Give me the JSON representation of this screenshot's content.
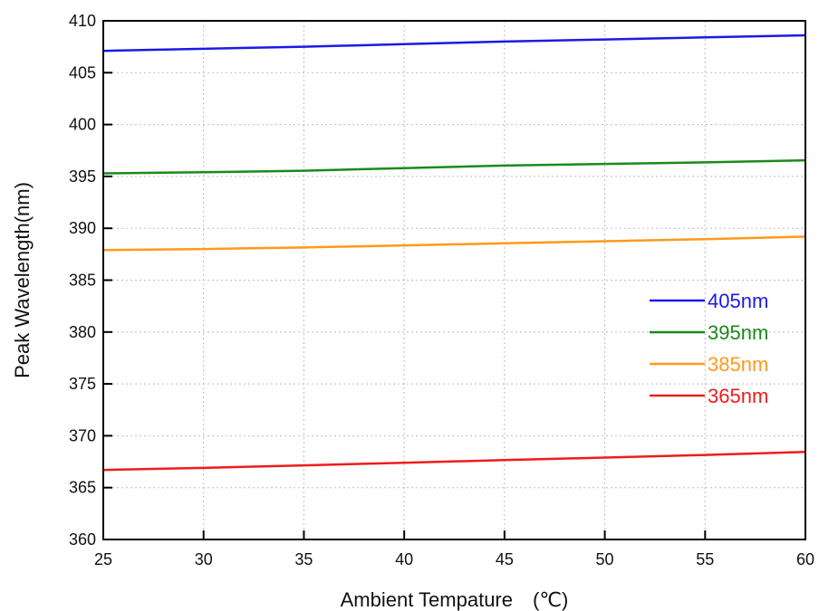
{
  "chart_data": {
    "type": "line",
    "title": "",
    "xlabel": "Ambient Tempature　(℃)",
    "ylabel": "Peak Wavelength(nm)",
    "xlim": [
      25,
      60
    ],
    "ylim": [
      360,
      410
    ],
    "xticks": [
      25,
      30,
      35,
      40,
      45,
      50,
      55,
      60
    ],
    "yticks": [
      360,
      365,
      370,
      375,
      380,
      385,
      390,
      395,
      400,
      405,
      410
    ],
    "grid": true,
    "legend_position": "right",
    "series": [
      {
        "name": "405nm",
        "color": "#1a1ae6",
        "x": [
          25,
          30,
          35,
          40,
          45,
          50,
          55,
          60
        ],
        "y": [
          407.1,
          407.3,
          407.5,
          407.75,
          408.0,
          408.2,
          408.4,
          408.6
        ]
      },
      {
        "name": "395nm",
        "color": "#1a8a1a",
        "x": [
          25,
          30,
          35,
          40,
          45,
          50,
          55,
          60
        ],
        "y": [
          395.3,
          395.4,
          395.55,
          395.8,
          396.05,
          396.2,
          396.35,
          396.55
        ]
      },
      {
        "name": "385nm",
        "color": "#ff9a1a",
        "x": [
          25,
          30,
          35,
          40,
          45,
          50,
          55,
          60
        ],
        "y": [
          387.9,
          388.0,
          388.15,
          388.35,
          388.55,
          388.75,
          388.95,
          389.2
        ]
      },
      {
        "name": "365nm",
        "color": "#ee1c1c",
        "x": [
          25,
          30,
          35,
          40,
          45,
          50,
          55,
          60
        ],
        "y": [
          366.7,
          366.9,
          367.15,
          367.4,
          367.65,
          367.9,
          368.15,
          368.45
        ]
      }
    ]
  }
}
